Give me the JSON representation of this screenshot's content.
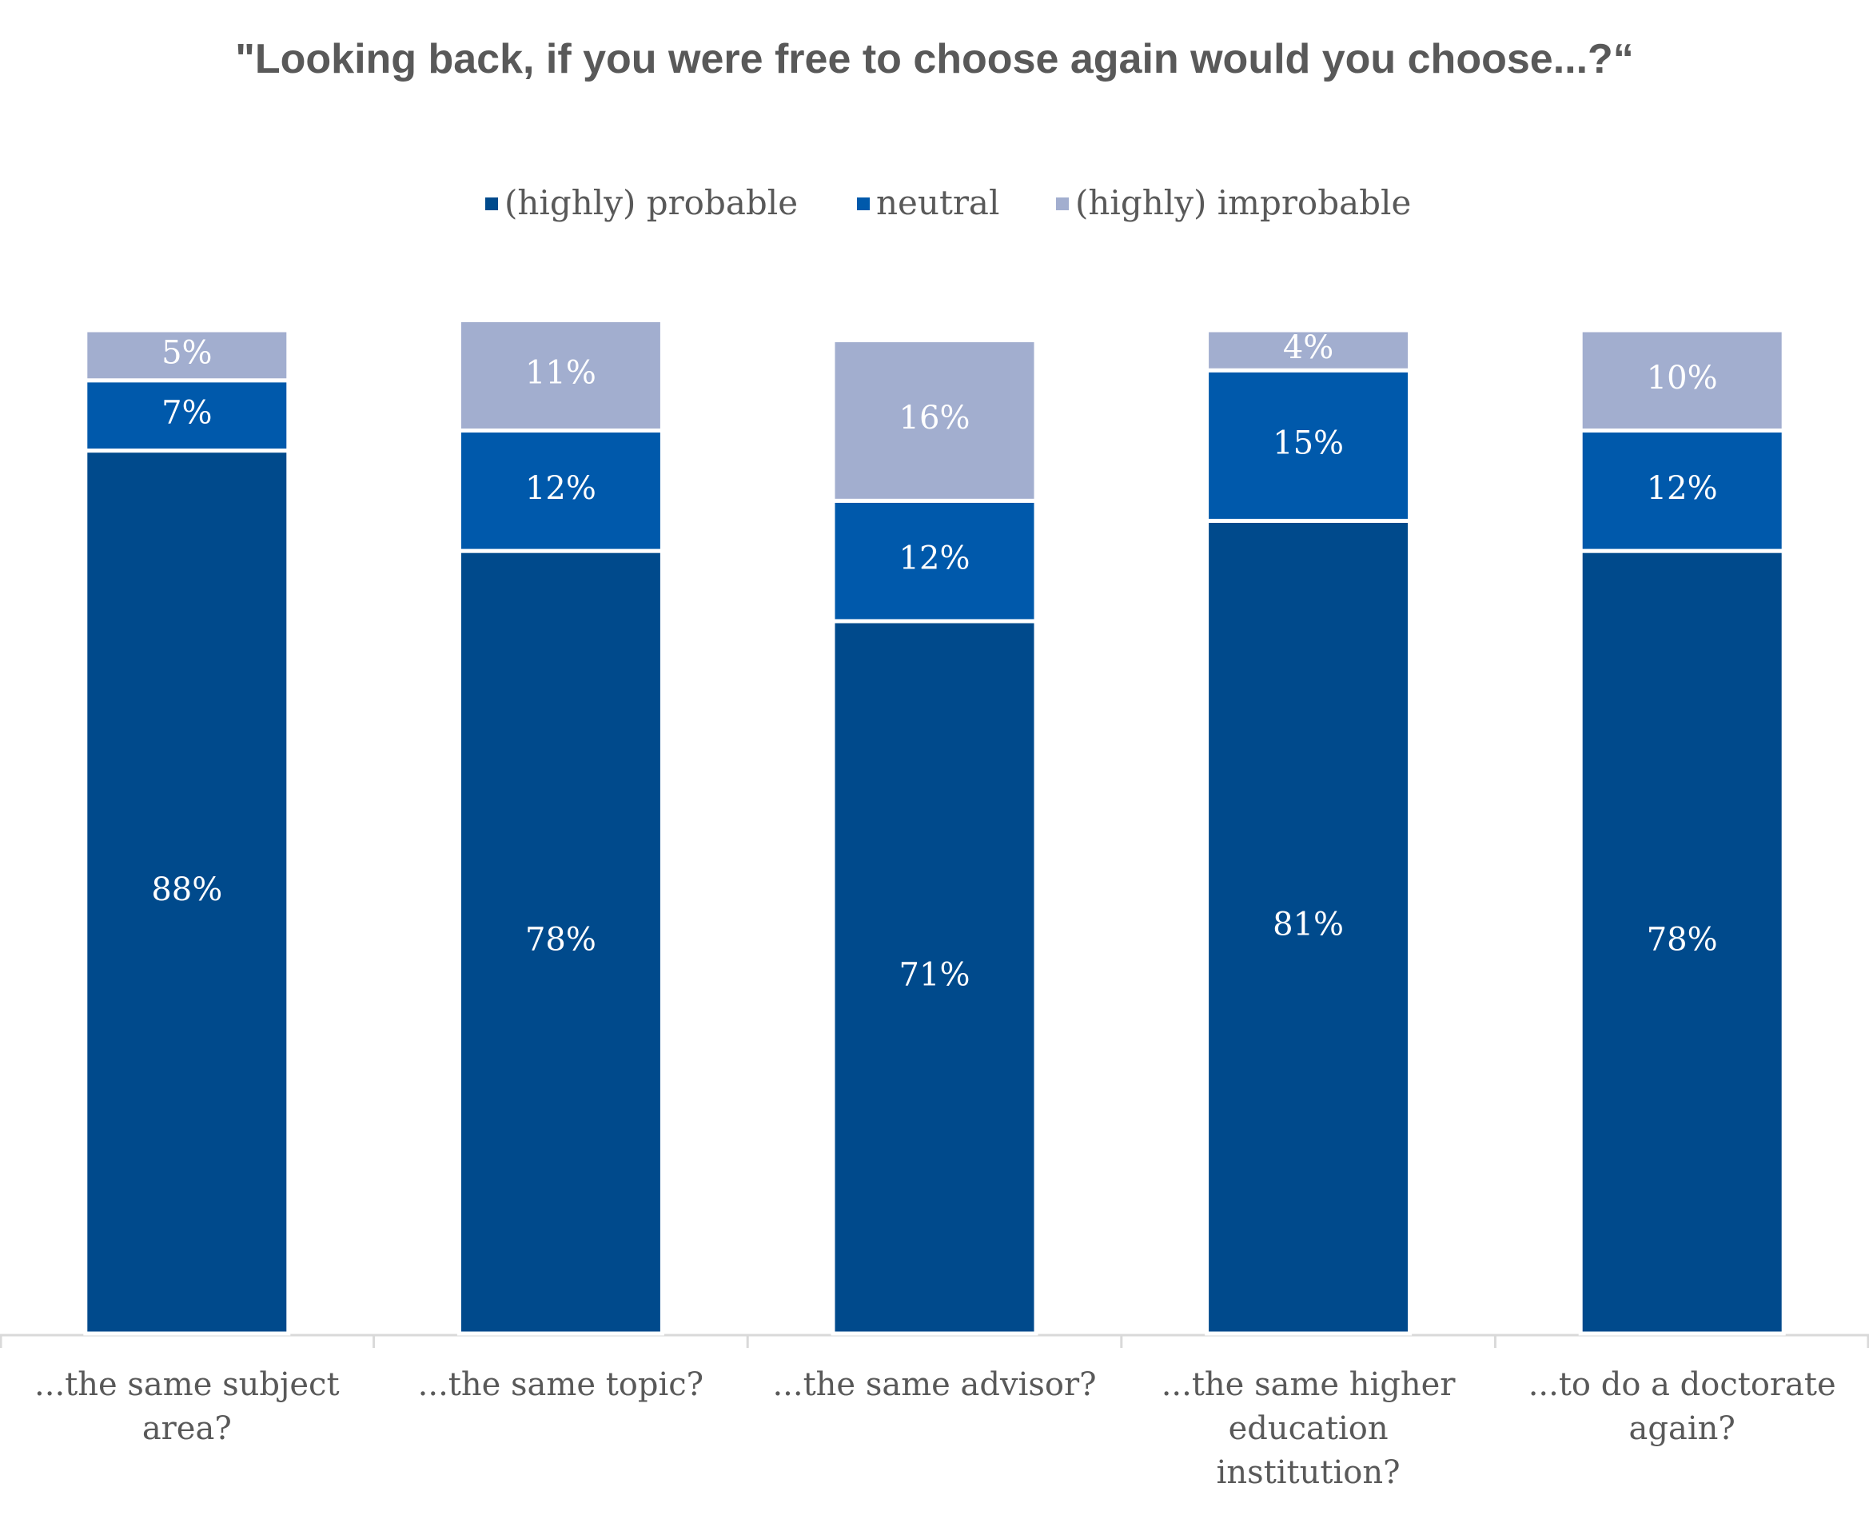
{
  "chart_data": {
    "type": "stacked-bar",
    "title": "\"Looking back, if you were free to choose again would you choose...?“",
    "categories": [
      "...the same subject area?",
      "...the same topic?",
      "...the same advisor?",
      "...the same higher education institution?",
      "...to do a doctorate again?"
    ],
    "series": [
      {
        "name": "(highly) probable",
        "color": "#004a8c",
        "values": [
          88,
          78,
          71,
          81,
          78
        ],
        "value_labels": [
          "88%",
          "78%",
          "71%",
          "81%",
          "78%"
        ]
      },
      {
        "name": "neutral",
        "color": "#0059ab",
        "values": [
          7,
          12,
          12,
          15,
          12
        ],
        "value_labels": [
          "7%",
          "12%",
          "12%",
          "15%",
          "12%"
        ]
      },
      {
        "name": "(highly) improbable",
        "color": "#a2aecf",
        "values": [
          5,
          11,
          16,
          4,
          10
        ],
        "value_labels": [
          "5%",
          "11%",
          "16%",
          "4%",
          "10%"
        ]
      }
    ],
    "ylim": [
      0,
      100
    ],
    "legend": "top"
  }
}
